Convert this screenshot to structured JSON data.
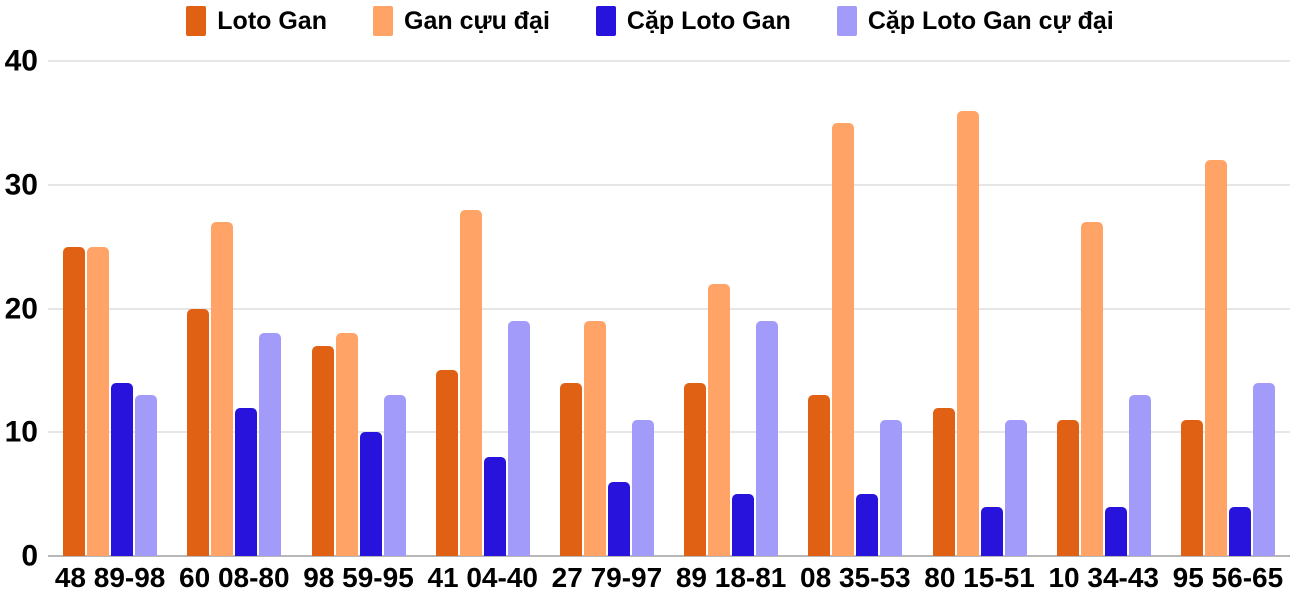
{
  "chart_data": {
    "type": "bar",
    "title": "",
    "xlabel": "",
    "ylabel": "",
    "categories": [
      "48 89-98",
      "60 08-80",
      "98 59-95",
      "41 04-40",
      "27 79-97",
      "89 18-81",
      "08 35-53",
      "80 15-51",
      "10 34-43",
      "95 56-65"
    ],
    "series": [
      {
        "name": "Loto Gan",
        "color": "#E06114",
        "values": [
          25,
          20,
          17,
          15,
          14,
          14,
          13,
          12,
          11,
          11
        ]
      },
      {
        "name": "Gan cựu đại",
        "color": "#FFA366",
        "values": [
          25,
          27,
          18,
          28,
          19,
          22,
          35,
          36,
          27,
          32
        ]
      },
      {
        "name": "Cặp Loto Gan",
        "color": "#2713DB",
        "values": [
          14,
          12,
          10,
          8,
          6,
          5,
          5,
          4,
          4,
          4
        ]
      },
      {
        "name": "Cặp Loto Gan cự đại",
        "color": "#A29BFA",
        "values": [
          13,
          18,
          13,
          19,
          11,
          19,
          11,
          11,
          13,
          14
        ]
      }
    ],
    "ylim": [
      0,
      40
    ],
    "yticks": [
      0,
      10,
      20,
      30,
      40
    ],
    "grid": true,
    "legend_position": "top",
    "colors": {
      "grid_line": "#E6E6E6",
      "baseline": "#B7B7B7",
      "text": "#000000",
      "background": "#FFFFFF"
    }
  }
}
